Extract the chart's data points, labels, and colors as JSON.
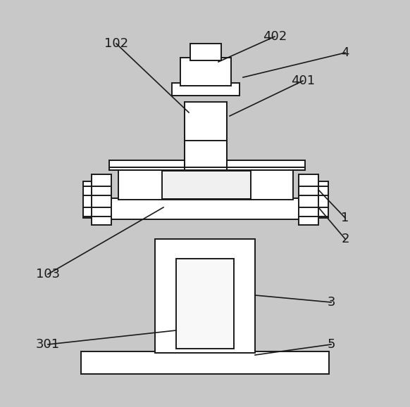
{
  "bg_color": "#c8c8c8",
  "draw_bg": "#ffffff",
  "line_color": "#1a1a1a",
  "fill_white": "#ffffff",
  "fill_light": "#f5f5f5",
  "lw": 1.4,
  "fig_width": 5.82,
  "fig_height": 5.79
}
